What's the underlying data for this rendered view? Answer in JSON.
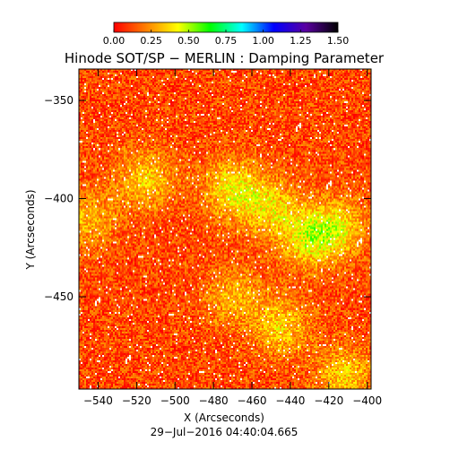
{
  "chart_data": {
    "type": "heatmap",
    "title": "Hinode SOT/SP − MERLIN : Damping Parameter",
    "xlabel": "X (Arcseconds)",
    "ylabel": "Y (Arcseconds)",
    "timestamp": "29−Jul−2016 04:40:04.665",
    "xlim": [
      -550,
      -398
    ],
    "ylim": [
      -497,
      -334
    ],
    "x_ticks": [
      {
        "value": -540,
        "label": "−540"
      },
      {
        "value": -520,
        "label": "−520"
      },
      {
        "value": -500,
        "label": "−500"
      },
      {
        "value": -480,
        "label": "−480"
      },
      {
        "value": -460,
        "label": "−460"
      },
      {
        "value": -440,
        "label": "−440"
      },
      {
        "value": -420,
        "label": "−420"
      },
      {
        "value": -400,
        "label": "−400"
      }
    ],
    "y_ticks": [
      {
        "value": -350,
        "label": "−350"
      },
      {
        "value": -400,
        "label": "−400"
      },
      {
        "value": -450,
        "label": "−450"
      }
    ],
    "colorbar": {
      "range": [
        0.0,
        1.5
      ],
      "ticks": [
        "0.00",
        "0.25",
        "0.50",
        "0.75",
        "1.00",
        "1.25",
        "1.50"
      ],
      "colors": [
        "#ff0000",
        "#ff7f00",
        "#ffff00",
        "#00ff00",
        "#00ffff",
        "#0000ff",
        "#5a00a0",
        "#000000"
      ]
    },
    "field": {
      "description_values": "damping parameter values over the map",
      "background_value": 0.12,
      "enhanced_regions": [
        {
          "x": -515,
          "y": -390,
          "value": 0.35
        },
        {
          "x": -470,
          "y": -395,
          "value": 0.4
        },
        {
          "x": -450,
          "y": -405,
          "value": 0.35
        },
        {
          "x": -430,
          "y": -420,
          "value": 0.4
        },
        {
          "x": -415,
          "y": -415,
          "value": 0.35
        },
        {
          "x": -445,
          "y": -465,
          "value": 0.35
        },
        {
          "x": -470,
          "y": -450,
          "value": 0.3
        },
        {
          "x": -412,
          "y": -490,
          "value": 0.35
        },
        {
          "x": -545,
          "y": -410,
          "value": 0.3
        }
      ]
    }
  }
}
